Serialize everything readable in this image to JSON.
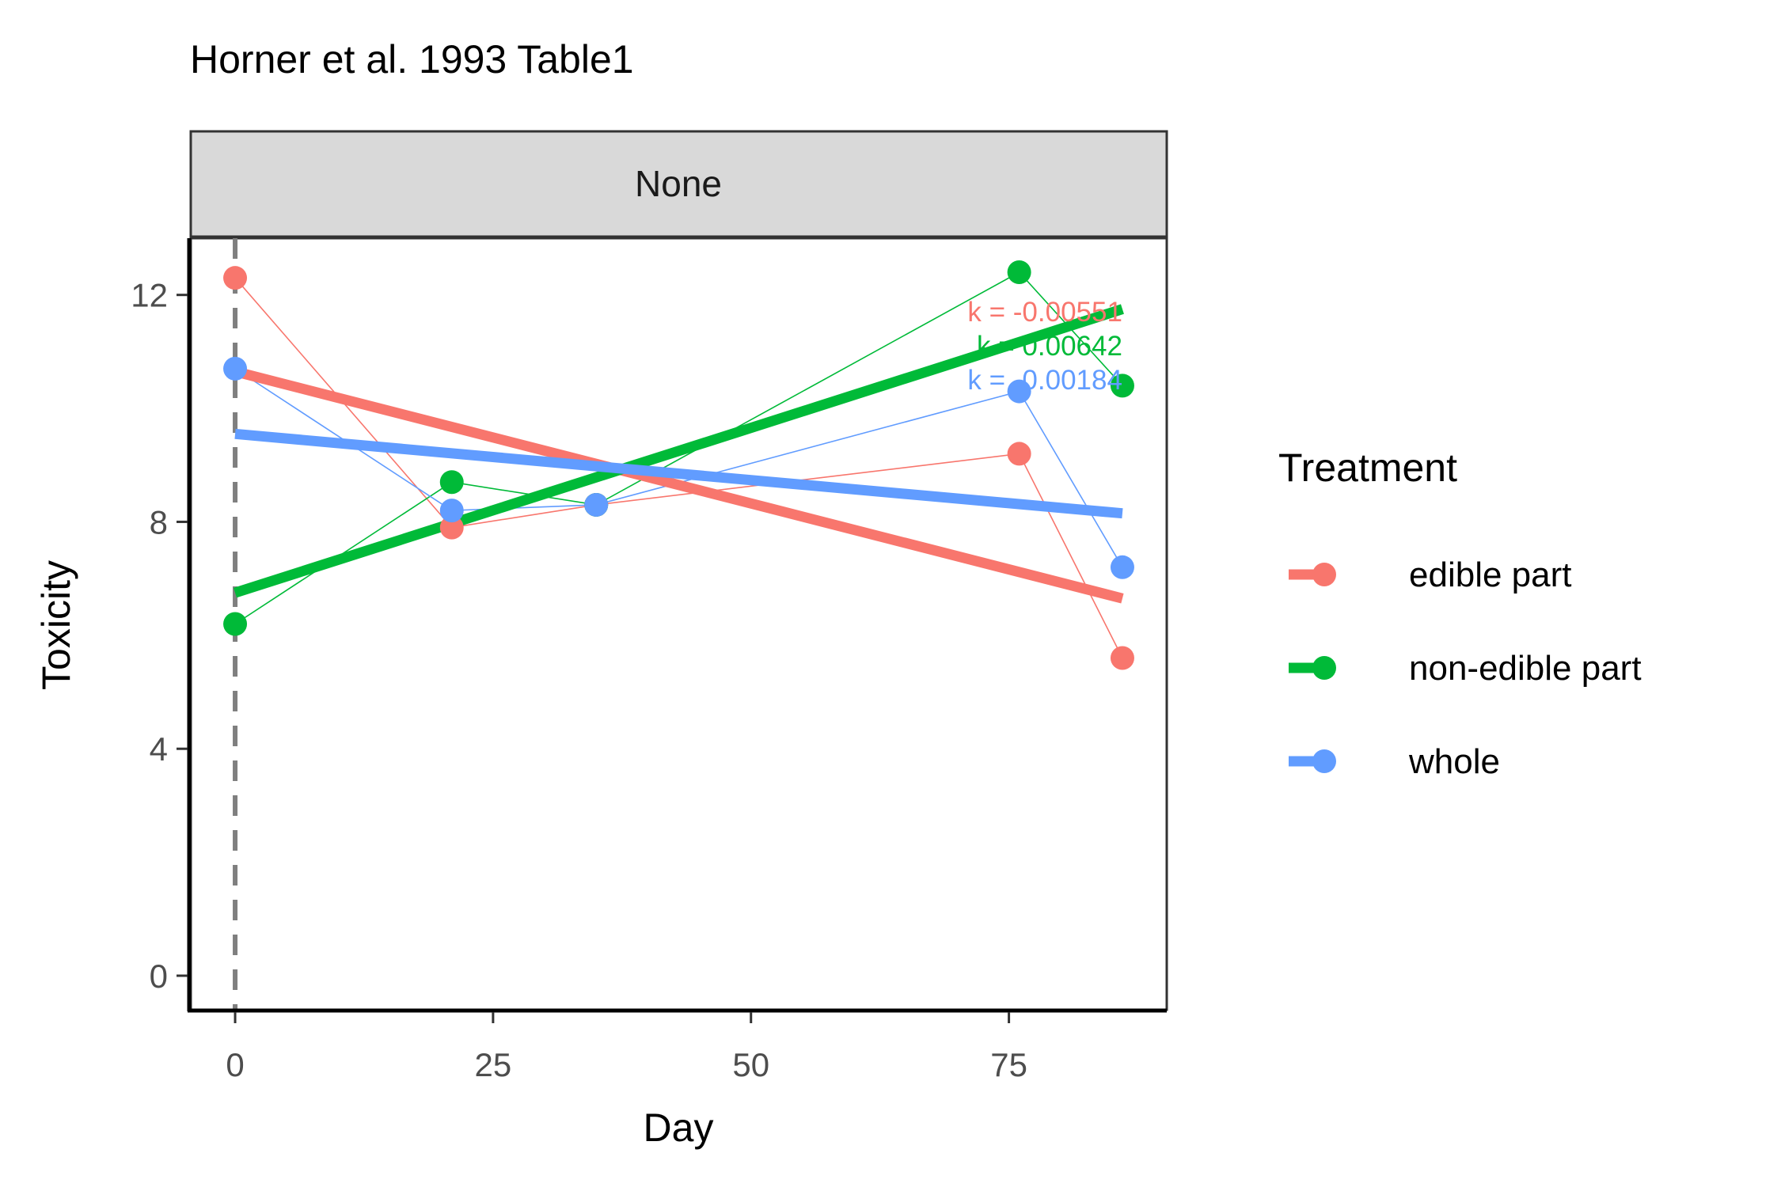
{
  "chart_data": {
    "type": "line",
    "title": "Horner et al. 1993 Table1",
    "facet": "None",
    "xlabel": "Day",
    "ylabel": "Toxicity",
    "xlim": [
      -4.3,
      90.3
    ],
    "ylim": [
      -0.6,
      13.0
    ],
    "xticks": [
      0,
      25,
      50,
      75
    ],
    "yticks": [
      0,
      4,
      8,
      12
    ],
    "vline_x": 0,
    "grid": false,
    "legend": {
      "title": "Treatment",
      "position": "right"
    },
    "series": [
      {
        "name": "edible part",
        "color": "#F8766D",
        "points": [
          [
            0,
            12.3
          ],
          [
            21,
            7.9
          ],
          [
            35,
            8.3
          ],
          [
            76,
            9.2
          ],
          [
            86,
            5.6
          ]
        ],
        "fit": [
          [
            0,
            10.65
          ],
          [
            86,
            6.65
          ]
        ],
        "annotation": "k = -0.00551"
      },
      {
        "name": "non-edible part",
        "color": "#00BA38",
        "points": [
          [
            0,
            6.2
          ],
          [
            21,
            8.7
          ],
          [
            35,
            8.3
          ],
          [
            76,
            12.4
          ],
          [
            86,
            10.4
          ]
        ],
        "fit": [
          [
            0,
            6.75
          ],
          [
            86,
            11.75
          ]
        ],
        "annotation": "k = 0.00642"
      },
      {
        "name": "whole",
        "color": "#619CFF",
        "points": [
          [
            0,
            10.7
          ],
          [
            21,
            8.2
          ],
          [
            35,
            8.3
          ],
          [
            76,
            10.3
          ],
          [
            86,
            7.2
          ]
        ],
        "fit": [
          [
            0,
            9.55
          ],
          [
            86,
            8.15
          ]
        ],
        "annotation": "k = -0.00184"
      }
    ]
  }
}
